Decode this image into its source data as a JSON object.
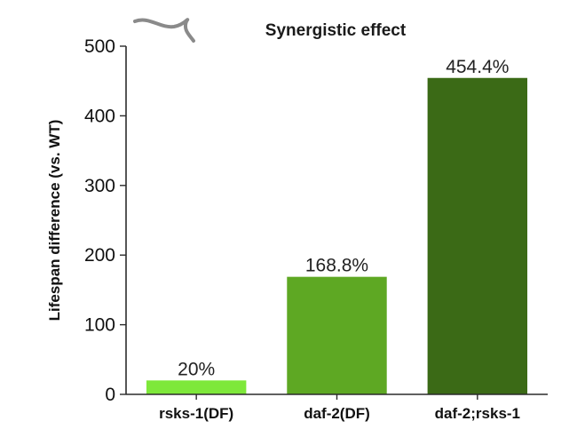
{
  "chart_data": {
    "type": "bar",
    "title": "Synergistic effect",
    "xlabel": "",
    "ylabel": "Lifespan difference  (vs. WT)",
    "categories": [
      "rsks-1(DF)",
      "daf-2(DF)",
      "daf-2;rsks-1"
    ],
    "values": [
      20,
      168.8,
      454.4
    ],
    "value_labels": [
      "20%",
      "168.8%",
      "454.4%"
    ],
    "colors": [
      "#7ee83a",
      "#5ea823",
      "#3b6a16"
    ],
    "ylim": [
      0,
      500
    ],
    "yticks": [
      0,
      100,
      200,
      300,
      400,
      500
    ],
    "grid": false,
    "legend": "none"
  },
  "decoration": {
    "icon": "worm-icon",
    "icon_color": "#8a8a8a"
  }
}
